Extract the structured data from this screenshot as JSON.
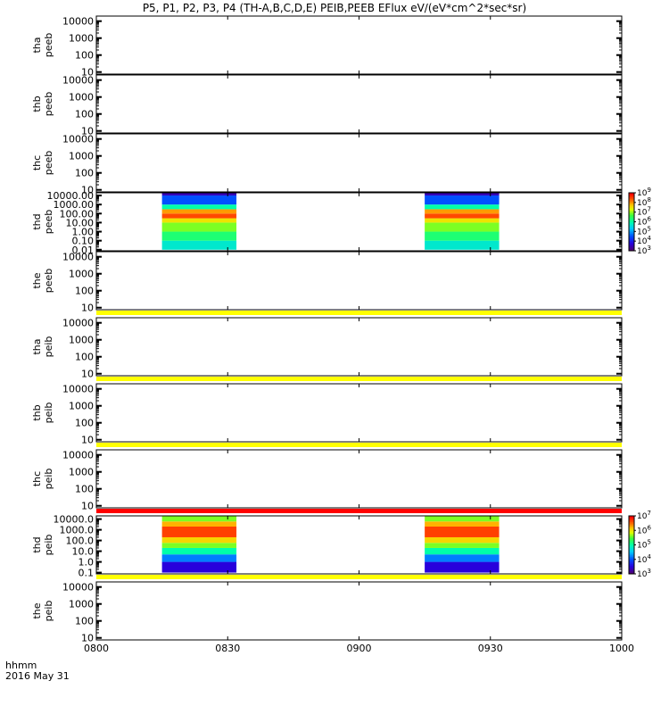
{
  "title": "P5, P1, P2, P3, P4 (TH-A,B,C,D,E) PEIB,PEEB EFlux eV/(eV*cm^2*sec*sr)",
  "footer": {
    "time_label": "hhmm",
    "date_label": "2016 May 31"
  },
  "colors": {
    "status_yellow": "#ffff00",
    "status_red": "#ff0000",
    "low_fill": "#00ffb0"
  },
  "chart_data": {
    "type": "heatmap",
    "x_ticks": [
      "0800",
      "0830",
      "0900",
      "0930",
      "1000"
    ],
    "x_range": [
      "0800",
      "1000"
    ],
    "y_scale": "log",
    "colormap": "rainbow (purple-blue-cyan-green-yellow-red)",
    "panels": [
      {
        "probe": "tha",
        "product": "peeb",
        "y_ticks": [
          "10",
          "100",
          "1000",
          "10000"
        ],
        "has_data": false
      },
      {
        "probe": "thb",
        "product": "peeb",
        "y_ticks": [
          "10",
          "100",
          "1000",
          "10000"
        ],
        "has_data": false
      },
      {
        "probe": "thc",
        "product": "peeb",
        "y_ticks": [
          "10",
          "100",
          "1000",
          "10000"
        ],
        "has_data": false
      },
      {
        "probe": "thd",
        "product": "peeb",
        "y_ticks": [
          "0.01",
          "0.10",
          "1.00",
          "10.00",
          "100.00",
          "1000.00",
          "10000.00"
        ],
        "has_data": true,
        "intervals": [
          [
            "0815",
            "0832"
          ],
          [
            "0915",
            "0932"
          ]
        ],
        "colorbar_ticks": [
          "10^3",
          "10^4",
          "10^5",
          "10^6",
          "10^7",
          "10^8",
          "10^9"
        ],
        "bands": [
          {
            "energy_range": [
              "0.01",
              "0.1"
            ],
            "color_level": 0.45
          },
          {
            "energy_range": [
              "0.1",
              "1"
            ],
            "color_level": 0.56
          },
          {
            "energy_range": [
              "1",
              "10"
            ],
            "color_level": 0.66
          },
          {
            "energy_range": [
              "10",
              "30"
            ],
            "color_level": 0.76
          },
          {
            "energy_range": [
              "30",
              "100"
            ],
            "color_level": 0.92
          },
          {
            "energy_range": [
              "100",
              "300"
            ],
            "color_level": 0.84
          },
          {
            "energy_range": [
              "300",
              "1000"
            ],
            "color_level": 0.5
          },
          {
            "energy_range": [
              "1000",
              "10000"
            ],
            "color_level": 0.25
          },
          {
            "energy_range": [
              "10000",
              "30000"
            ],
            "color_level": 0.08
          }
        ]
      },
      {
        "probe": "the",
        "product": "peeb",
        "y_ticks": [
          "10",
          "100",
          "1000",
          "10000"
        ],
        "has_data": false,
        "status_bar": "yellow"
      },
      {
        "probe": "tha",
        "product": "peib",
        "y_ticks": [
          "10",
          "100",
          "1000",
          "10000"
        ],
        "has_data": false,
        "status_bar": "yellow"
      },
      {
        "probe": "thb",
        "product": "peib",
        "y_ticks": [
          "10",
          "100",
          "1000",
          "10000"
        ],
        "has_data": false,
        "status_bar": "yellow"
      },
      {
        "probe": "thc",
        "product": "peib",
        "y_ticks": [
          "10",
          "100",
          "1000",
          "10000"
        ],
        "has_data": false,
        "status_bar": "red"
      },
      {
        "probe": "thd",
        "product": "peib",
        "y_ticks": [
          "0.1",
          "1.0",
          "10.0",
          "100.0",
          "1000.0",
          "10000.0"
        ],
        "has_data": true,
        "intervals": [
          [
            "0815",
            "0832"
          ],
          [
            "0915",
            "0932"
          ]
        ],
        "colorbar_ticks": [
          "10^3",
          "10^4",
          "10^5",
          "10^6",
          "10^7"
        ],
        "status_bar": "yellow",
        "bands": [
          {
            "energy_range": [
              "0.1",
              "1"
            ],
            "color_level": 0.12
          },
          {
            "energy_range": [
              "1",
              "5"
            ],
            "color_level": 0.3
          },
          {
            "energy_range": [
              "5",
              "20"
            ],
            "color_level": 0.5
          },
          {
            "energy_range": [
              "20",
              "60"
            ],
            "color_level": 0.66
          },
          {
            "energy_range": [
              "60",
              "200"
            ],
            "color_level": 0.78
          },
          {
            "energy_range": [
              "200",
              "2000"
            ],
            "color_level": 0.93
          },
          {
            "energy_range": [
              "2000",
              "6000"
            ],
            "color_level": 0.82
          },
          {
            "energy_range": [
              "6000",
              "20000"
            ],
            "color_level": 0.66
          }
        ]
      },
      {
        "probe": "the",
        "product": "peib",
        "y_ticks": [
          "10",
          "100",
          "1000",
          "10000"
        ],
        "has_data": false
      }
    ]
  }
}
